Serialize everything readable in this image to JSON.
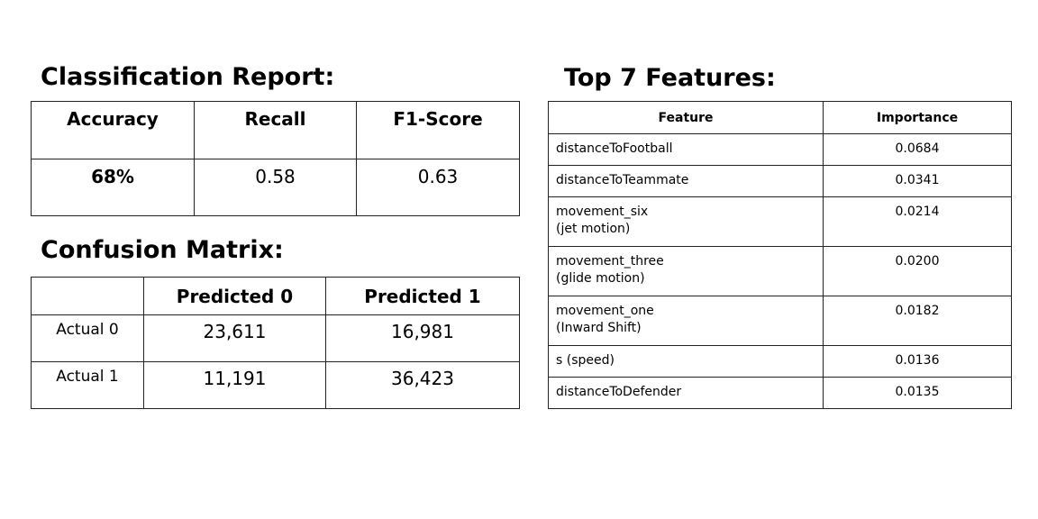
{
  "classification_report": {
    "heading": "Classification Report:",
    "headers": [
      "Accuracy",
      "Recall",
      "F1-Score"
    ],
    "values": [
      "68%",
      "0.58",
      "0.63"
    ]
  },
  "confusion_matrix": {
    "heading": "Confusion Matrix:",
    "col_headers": [
      "",
      "Predicted 0",
      "Predicted 1"
    ],
    "rows": [
      {
        "label": "Actual 0",
        "values": [
          "23,611",
          "16,981"
        ]
      },
      {
        "label": "Actual 1",
        "values": [
          "11,191",
          "36,423"
        ]
      }
    ]
  },
  "features": {
    "heading": "Top 7 Features:",
    "headers": [
      "Feature",
      "Importance"
    ],
    "rows": [
      {
        "name": "distanceToFootball",
        "note": "",
        "importance": "0.0684"
      },
      {
        "name": "distanceToTeammate",
        "note": "",
        "importance": "0.0341"
      },
      {
        "name": "movement_six",
        "note": "(jet motion)",
        "importance": "0.0214"
      },
      {
        "name": "movement_three",
        "note": "(glide motion)",
        "importance": "0.0200"
      },
      {
        "name": "movement_one",
        "note": "(Inward Shift)",
        "importance": "0.0182"
      },
      {
        "name": "s (speed)",
        "note": "",
        "importance": "0.0136"
      },
      {
        "name": "distanceToDefender",
        "note": "",
        "importance": "0.0135"
      }
    ]
  },
  "chart_data": [
    {
      "type": "table",
      "title": "Classification Report:",
      "columns": [
        "Accuracy",
        "Recall",
        "F1-Score"
      ],
      "rows": [
        [
          "68%",
          0.58,
          0.63
        ]
      ]
    },
    {
      "type": "table",
      "title": "Confusion Matrix:",
      "columns": [
        "",
        "Predicted 0",
        "Predicted 1"
      ],
      "rows": [
        [
          "Actual 0",
          23611,
          16981
        ],
        [
          "Actual 1",
          11191,
          36423
        ]
      ]
    },
    {
      "type": "table",
      "title": "Top 7 Features:",
      "columns": [
        "Feature",
        "Importance"
      ],
      "rows": [
        [
          "distanceToFootball",
          0.0684
        ],
        [
          "distanceToTeammate",
          0.0341
        ],
        [
          "movement_six (jet motion)",
          0.0214
        ],
        [
          "movement_three (glide motion)",
          0.02
        ],
        [
          "movement_one (Inward Shift)",
          0.0182
        ],
        [
          "s (speed)",
          0.0136
        ],
        [
          "distanceToDefender",
          0.0135
        ]
      ]
    }
  ]
}
